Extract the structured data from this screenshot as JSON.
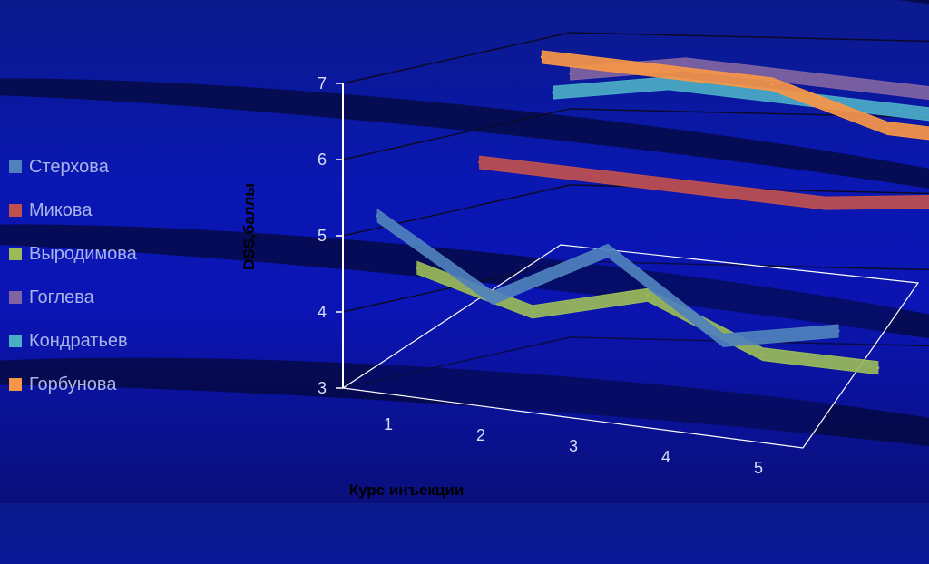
{
  "chart_data": {
    "type": "line",
    "style": "3d",
    "title": "",
    "xlabel": "Курс инъекции",
    "ylabel": "DSS,баллы",
    "categories": [
      "1",
      "2",
      "3",
      "4",
      "5"
    ],
    "y_ticks": [
      "3",
      "4",
      "5",
      "6",
      "7"
    ],
    "ylim": [
      3,
      7
    ],
    "grid": true,
    "legend_position": "left",
    "series": [
      {
        "name": "Стерхова",
        "color": "#4f81bd",
        "values": [
          5.4,
          4.5,
          5.3,
          4.3,
          4.6
        ]
      },
      {
        "name": "Микова",
        "color": "#c0504d",
        "values": [
          5.8,
          5.8,
          5.8,
          5.8,
          6.0
        ]
      },
      {
        "name": "Выродимова",
        "color": "#9bbb59",
        "values": [
          4.6,
          4.2,
          4.6,
          4.0,
          4.0
        ]
      },
      {
        "name": "Гоглева",
        "color": "#8064a2",
        "values": [
          6.7,
          7.0,
          7.0,
          7.0,
          7.0
        ]
      },
      {
        "name": "Кондратьев",
        "color": "#4bacc6",
        "values": [
          6.5,
          6.8,
          6.8,
          6.8,
          6.8
        ]
      },
      {
        "name": "Горбунова",
        "color": "#f79646",
        "values": [
          7.0,
          7.0,
          7.0,
          6.6,
          6.6
        ]
      }
    ]
  }
}
